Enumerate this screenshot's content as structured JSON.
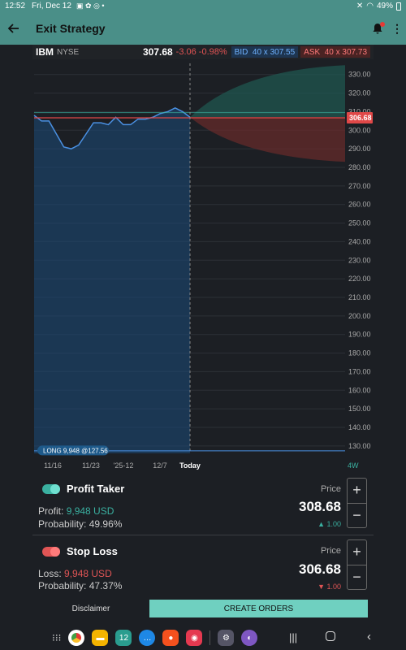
{
  "status": {
    "time": "12:52",
    "date": "Fri, Dec 12",
    "battery": "49%"
  },
  "appbar": {
    "title": "Exit Strategy"
  },
  "quote": {
    "symbol": "IBM",
    "exchange": "NYSE",
    "last": "307.68",
    "change": "-3.06 -0.98%",
    "bid_label": "BID",
    "bid": "40 x 307.55",
    "ask_label": "ASK",
    "ask": "40 x 307.73"
  },
  "chart_data": {
    "type": "line",
    "y_ticks": [
      "330.00",
      "320.00",
      "310.00",
      "300.00",
      "290.00",
      "280.00",
      "270.00",
      "260.00",
      "250.00",
      "240.00",
      "230.00",
      "220.00",
      "210.00",
      "200.00",
      "190.00",
      "180.00",
      "170.00",
      "160.00",
      "150.00",
      "140.00",
      "130.00"
    ],
    "ylim": [
      126,
      336
    ],
    "x_ticks": [
      "11/16",
      "11/23",
      "'25-12",
      "12/7",
      "Today"
    ],
    "range_label": "4W",
    "current_price_label": "306.68",
    "position_label": "LONG 9,948 @127.56",
    "series": [
      {
        "values": [
          308,
          305,
          305,
          298,
          291,
          290,
          292,
          298,
          304,
          304,
          303,
          307,
          303,
          303,
          306,
          306,
          307,
          309,
          310,
          312,
          310,
          307
        ]
      }
    ],
    "projection": {
      "start": 307,
      "upper_end": 335,
      "lower_end": 283
    },
    "colors": {
      "line": "#4a90e2",
      "fill": "#1b4a7a",
      "upper": "#1f5a52",
      "lower": "#6a2b2b",
      "stop": "#e04848"
    }
  },
  "profit": {
    "title": "Profit Taker",
    "profit_label": "Profit:",
    "profit_value": "9,948 USD",
    "prob_label": "Probability:",
    "prob_value": "49.96%",
    "price_label": "Price",
    "price": "308.68",
    "delta": "▲ 1.00"
  },
  "stop": {
    "title": "Stop Loss",
    "loss_label": "Loss:",
    "loss_value": "9,948 USD",
    "prob_label": "Probability:",
    "prob_value": "47.37%",
    "price_label": "Price",
    "price": "306.68",
    "delta": "▼ 1.00"
  },
  "actions": {
    "disclaimer": "Disclaimer",
    "create": "CREATE ORDERS"
  },
  "dock": {
    "calendar_day": "12"
  }
}
